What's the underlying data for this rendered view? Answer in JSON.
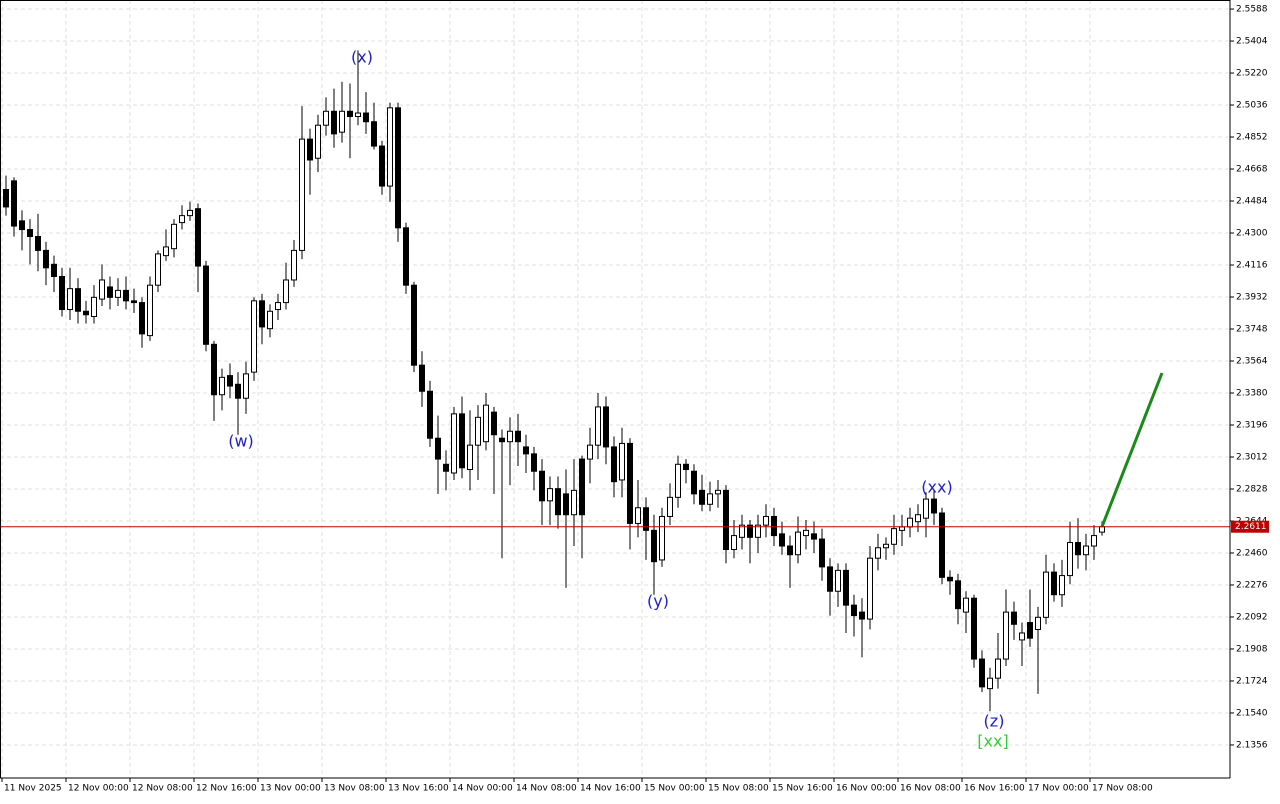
{
  "chart_data": {
    "type": "candlestick",
    "candles": [
      [
        2.455,
        2.463,
        2.44,
        2.445
      ],
      [
        2.46,
        2.462,
        2.428,
        2.434
      ],
      [
        2.437,
        2.443,
        2.42,
        2.432
      ],
      [
        2.432,
        2.438,
        2.412,
        2.428
      ],
      [
        2.428,
        2.441,
        2.408,
        2.42
      ],
      [
        2.42,
        2.425,
        2.4,
        2.41
      ],
      [
        2.412,
        2.417,
        2.396,
        2.405
      ],
      [
        2.405,
        2.41,
        2.382,
        2.386
      ],
      [
        2.386,
        2.41,
        2.38,
        2.398
      ],
      [
        2.398,
        2.404,
        2.378,
        2.385
      ],
      [
        2.385,
        2.391,
        2.378,
        2.383
      ],
      [
        2.382,
        2.4,
        2.378,
        2.393
      ],
      [
        2.392,
        2.412,
        2.388,
        2.403
      ],
      [
        2.399,
        2.405,
        2.386,
        2.393
      ],
      [
        2.393,
        2.404,
        2.388,
        2.397
      ],
      [
        2.397,
        2.405,
        2.386,
        2.391
      ],
      [
        2.391,
        2.398,
        2.384,
        2.39
      ],
      [
        2.39,
        2.393,
        2.364,
        2.372
      ],
      [
        2.371,
        2.405,
        2.368,
        2.4
      ],
      [
        2.4,
        2.42,
        2.396,
        2.418
      ],
      [
        2.417,
        2.432,
        2.414,
        2.422
      ],
      [
        2.421,
        2.438,
        2.416,
        2.435
      ],
      [
        2.436,
        2.446,
        2.432,
        2.44
      ],
      [
        2.44,
        2.448,
        2.437,
        2.443
      ],
      [
        2.444,
        2.447,
        2.396,
        2.411
      ],
      [
        2.411,
        2.414,
        2.362,
        2.366
      ],
      [
        2.366,
        2.368,
        2.322,
        2.337
      ],
      [
        2.337,
        2.352,
        2.328,
        2.347
      ],
      [
        2.348,
        2.355,
        2.335,
        2.342
      ],
      [
        2.343,
        2.35,
        2.314,
        2.335
      ],
      [
        2.335,
        2.356,
        2.326,
        2.349
      ],
      [
        2.35,
        2.393,
        2.345,
        2.391
      ],
      [
        2.391,
        2.395,
        2.366,
        2.376
      ],
      [
        2.375,
        2.389,
        2.37,
        2.385
      ],
      [
        2.386,
        2.395,
        2.38,
        2.39
      ],
      [
        2.39,
        2.413,
        2.386,
        2.403
      ],
      [
        2.403,
        2.426,
        2.399,
        2.42
      ],
      [
        2.42,
        2.503,
        2.415,
        2.484
      ],
      [
        2.484,
        2.49,
        2.452,
        2.472
      ],
      [
        2.473,
        2.498,
        2.465,
        2.492
      ],
      [
        2.492,
        2.508,
        2.486,
        2.5
      ],
      [
        2.5,
        2.513,
        2.479,
        2.487
      ],
      [
        2.488,
        2.517,
        2.482,
        2.5
      ],
      [
        2.5,
        2.516,
        2.473,
        2.497
      ],
      [
        2.497,
        2.535,
        2.492,
        2.499
      ],
      [
        2.499,
        2.511,
        2.487,
        2.494
      ],
      [
        2.494,
        2.505,
        2.478,
        2.48
      ],
      [
        2.48,
        2.483,
        2.452,
        2.457
      ],
      [
        2.457,
        2.505,
        2.448,
        2.502
      ],
      [
        2.502,
        2.505,
        2.425,
        2.433
      ],
      [
        2.433,
        2.436,
        2.395,
        2.4
      ],
      [
        2.4,
        2.402,
        2.35,
        2.354
      ],
      [
        2.354,
        2.362,
        2.33,
        2.339
      ],
      [
        2.339,
        2.345,
        2.307,
        2.312
      ],
      [
        2.312,
        2.325,
        2.28,
        2.3
      ],
      [
        2.297,
        2.305,
        2.282,
        2.293
      ],
      [
        2.292,
        2.33,
        2.288,
        2.326
      ],
      [
        2.326,
        2.336,
        2.289,
        2.295
      ],
      [
        2.294,
        2.328,
        2.282,
        2.308
      ],
      [
        2.308,
        2.331,
        2.288,
        2.324
      ],
      [
        2.31,
        2.338,
        2.305,
        2.331
      ],
      [
        2.327,
        2.33,
        2.28,
        2.314
      ],
      [
        2.312,
        2.317,
        2.243,
        2.31
      ],
      [
        2.31,
        2.324,
        2.285,
        2.316
      ],
      [
        2.316,
        2.326,
        2.296,
        2.31
      ],
      [
        2.307,
        2.314,
        2.292,
        2.303
      ],
      [
        2.303,
        2.307,
        2.282,
        2.293
      ],
      [
        2.293,
        2.3,
        2.262,
        2.276
      ],
      [
        2.276,
        2.29,
        2.262,
        2.283
      ],
      [
        2.283,
        2.29,
        2.26,
        2.268
      ],
      [
        2.28,
        2.294,
        2.226,
        2.268
      ],
      [
        2.268,
        2.3,
        2.25,
        2.282
      ],
      [
        2.3,
        2.302,
        2.243,
        2.268
      ],
      [
        2.3,
        2.318,
        2.286,
        2.308
      ],
      [
        2.308,
        2.338,
        2.3,
        2.33
      ],
      [
        2.33,
        2.336,
        2.297,
        2.307
      ],
      [
        2.307,
        2.313,
        2.278,
        2.287
      ],
      [
        2.288,
        2.318,
        2.278,
        2.309
      ],
      [
        2.309,
        2.312,
        2.248,
        2.263
      ],
      [
        2.263,
        2.288,
        2.255,
        2.272
      ],
      [
        2.272,
        2.278,
        2.242,
        2.259
      ],
      [
        2.259,
        2.268,
        2.222,
        2.241
      ],
      [
        2.242,
        2.272,
        2.238,
        2.267
      ],
      [
        2.267,
        2.286,
        2.262,
        2.278
      ],
      [
        2.278,
        2.302,
        2.272,
        2.297
      ],
      [
        2.297,
        2.3,
        2.286,
        2.294
      ],
      [
        2.293,
        2.297,
        2.274,
        2.28
      ],
      [
        2.282,
        2.291,
        2.27,
        2.274
      ],
      [
        2.274,
        2.287,
        2.27,
        2.28
      ],
      [
        2.28,
        2.288,
        2.272,
        2.282
      ],
      [
        2.282,
        2.285,
        2.24,
        2.248
      ],
      [
        2.248,
        2.265,
        2.243,
        2.256
      ],
      [
        2.255,
        2.268,
        2.248,
        2.262
      ],
      [
        2.262,
        2.265,
        2.24,
        2.255
      ],
      [
        2.255,
        2.268,
        2.246,
        2.262
      ],
      [
        2.262,
        2.274,
        2.255,
        2.267
      ],
      [
        2.267,
        2.272,
        2.25,
        2.256
      ],
      [
        2.257,
        2.264,
        2.245,
        2.25
      ],
      [
        2.25,
        2.256,
        2.226,
        2.245
      ],
      [
        2.245,
        2.267,
        2.24,
        2.258
      ],
      [
        2.256,
        2.265,
        2.248,
        2.259
      ],
      [
        2.257,
        2.264,
        2.246,
        2.254
      ],
      [
        2.254,
        2.26,
        2.23,
        2.238
      ],
      [
        2.238,
        2.243,
        2.21,
        2.224
      ],
      [
        2.224,
        2.24,
        2.215,
        2.236
      ],
      [
        2.236,
        2.24,
        2.2,
        2.216
      ],
      [
        2.216,
        2.222,
        2.198,
        2.21
      ],
      [
        2.212,
        2.22,
        2.186,
        2.208
      ],
      [
        2.208,
        2.25,
        2.202,
        2.243
      ],
      [
        2.243,
        2.257,
        2.236,
        2.249
      ],
      [
        2.249,
        2.255,
        2.242,
        2.251
      ],
      [
        2.251,
        2.268,
        2.245,
        2.26
      ],
      [
        2.259,
        2.268,
        2.25,
        2.261
      ],
      [
        2.261,
        2.272,
        2.255,
        2.266
      ],
      [
        2.264,
        2.274,
        2.258,
        2.268
      ],
      [
        2.266,
        2.281,
        2.255,
        2.277
      ],
      [
        2.277,
        2.282,
        2.262,
        2.269
      ],
      [
        2.269,
        2.272,
        2.228,
        2.232
      ],
      [
        2.232,
        2.236,
        2.222,
        2.23
      ],
      [
        2.23,
        2.234,
        2.205,
        2.214
      ],
      [
        2.212,
        2.224,
        2.2,
        2.22
      ],
      [
        2.22,
        2.222,
        2.18,
        2.185
      ],
      [
        2.185,
        2.19,
        2.166,
        2.169
      ],
      [
        2.168,
        2.18,
        2.155,
        2.174
      ],
      [
        2.174,
        2.2,
        2.168,
        2.185
      ],
      [
        2.185,
        2.225,
        2.181,
        2.212
      ],
      [
        2.212,
        2.218,
        2.196,
        2.205
      ],
      [
        2.196,
        2.206,
        2.181,
        2.2
      ],
      [
        2.206,
        2.225,
        2.192,
        2.197
      ],
      [
        2.202,
        2.215,
        2.165,
        2.209
      ],
      [
        2.209,
        2.245,
        2.205,
        2.235
      ],
      [
        2.235,
        2.24,
        2.218,
        2.222
      ],
      [
        2.222,
        2.242,
        2.215,
        2.233
      ],
      [
        2.233,
        2.264,
        2.228,
        2.252
      ],
      [
        2.252,
        2.266,
        2.237,
        2.245
      ],
      [
        2.245,
        2.257,
        2.236,
        2.25
      ],
      [
        2.25,
        2.262,
        2.242,
        2.256
      ],
      [
        2.258,
        2.264,
        2.256,
        2.2611
      ]
    ],
    "categories": [
      "11 Nov 2025",
      null,
      null,
      null,
      null,
      null,
      null,
      null,
      "12 Nov 00:00",
      null,
      null,
      null,
      null,
      null,
      null,
      null,
      "12 Nov 08:00",
      null,
      null,
      null,
      null,
      null,
      null,
      null,
      "12 Nov 16:00",
      null,
      null,
      null,
      null,
      null,
      null,
      null,
      "13 Nov 00:00",
      null,
      null,
      null,
      null,
      null,
      null,
      null,
      "13 Nov 08:00",
      null,
      null,
      null,
      null,
      null,
      null,
      null,
      "13 Nov 16:00",
      null,
      null,
      null,
      null,
      null,
      null,
      null,
      "14 Nov 00:00",
      null,
      null,
      null,
      null,
      null,
      null,
      null,
      "14 Nov 08:00",
      null,
      null,
      null,
      null,
      null,
      null,
      null,
      "14 Nov 16:00",
      null,
      null,
      null,
      null,
      null,
      null,
      null,
      "15 Nov 00:00",
      null,
      null,
      null,
      null,
      null,
      null,
      null,
      "15 Nov 08:00",
      null,
      null,
      null,
      null,
      null,
      null,
      null,
      "15 Nov 16:00",
      null,
      null,
      null,
      null,
      null,
      null,
      null,
      "16 Nov 00:00",
      null,
      null,
      null,
      null,
      null,
      null,
      null,
      "16 Nov 08:00",
      null,
      null,
      null,
      null,
      null,
      null,
      null,
      "16 Nov 16:00",
      null,
      null,
      null,
      null,
      null,
      null,
      null,
      "17 Nov 00:00",
      null,
      null,
      null,
      null,
      null,
      null,
      null,
      "17 Nov 08:00",
      null
    ],
    "ylim": [
      2.1166,
      2.564
    ],
    "yticks": [
      2.5588,
      2.5404,
      {
        "value": 2.522,
        "label": "2.5220"
      },
      2.5036,
      2.4852,
      2.4668,
      2.4484,
      {
        "value": 2.43,
        "label": "2.4300"
      },
      2.4116,
      2.3932,
      2.3748,
      2.3564,
      {
        "value": 2.338,
        "label": "2.3380"
      },
      2.3196,
      2.3012,
      2.2828,
      2.2644,
      {
        "value": 2.246,
        "label": "2.2460"
      },
      2.2276,
      2.2092,
      2.1908,
      2.1724,
      {
        "value": 2.154,
        "label": "2.1540"
      },
      2.1356
    ],
    "grid": true,
    "current_price": {
      "value": 2.2611,
      "color": "#c00000"
    },
    "forecast": {
      "x": [
        137,
        144.5
      ],
      "values": [
        2.2611,
        2.3495
      ],
      "color": "#1a8a1a"
    },
    "annotations": [
      {
        "text": "(w)",
        "color": "#1e1ec8"
      },
      {
        "text": "(x)",
        "color": "#1e1ec8"
      },
      {
        "text": "(y)",
        "color": "#1e1ec8"
      },
      {
        "text": "(xx)",
        "color": "#1e1ec8"
      },
      {
        "text": "(z)",
        "color": "#1e1ec8"
      },
      {
        "text": "[xx]",
        "color": "#33cc33"
      }
    ]
  }
}
